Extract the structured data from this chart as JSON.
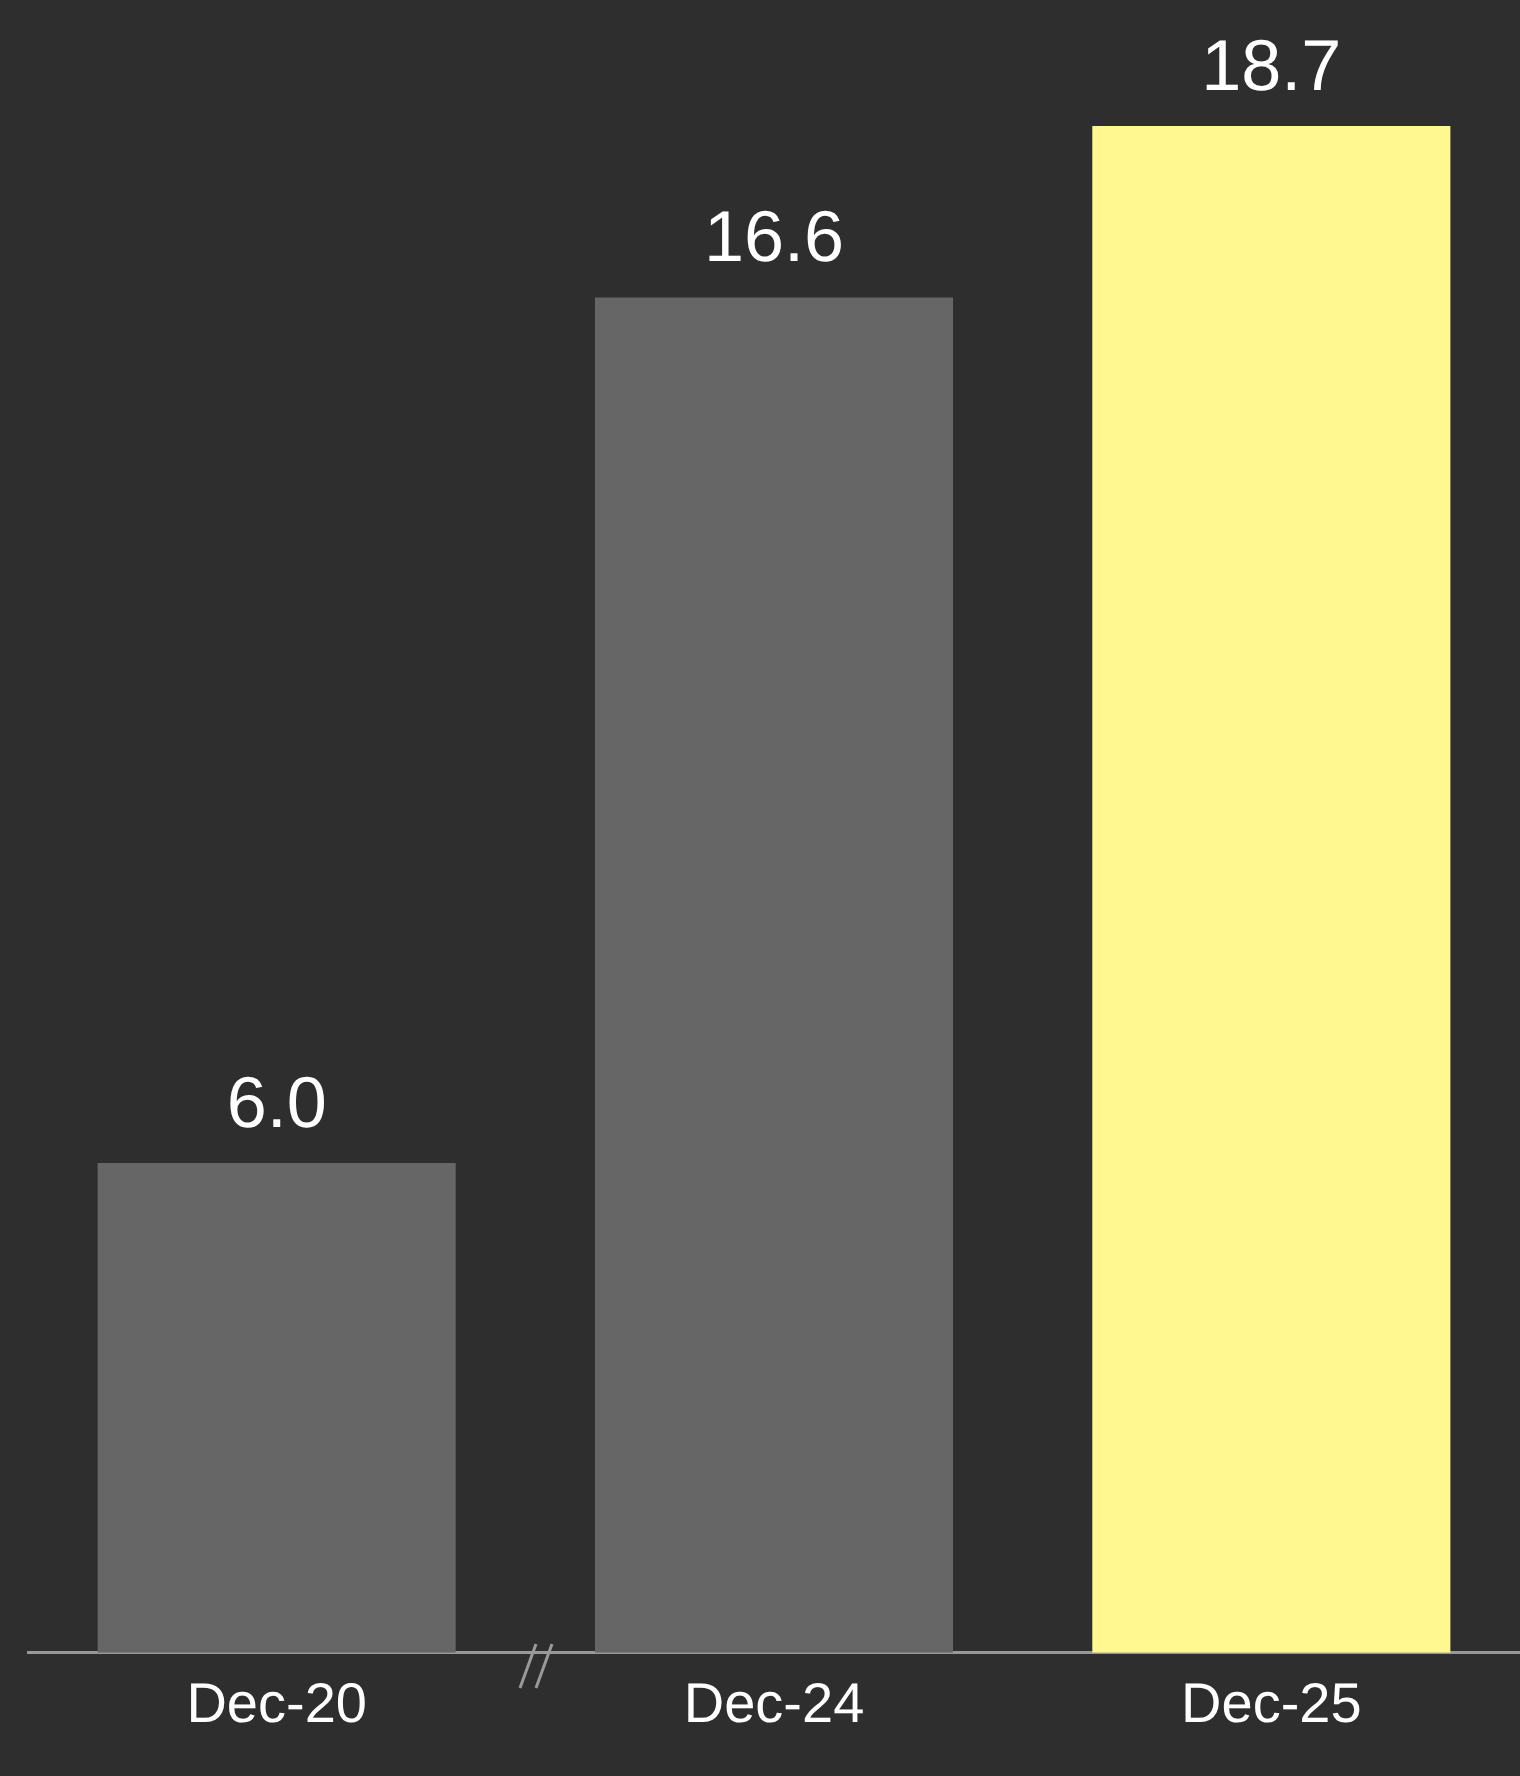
{
  "chart_data": {
    "type": "bar",
    "categories": [
      "Dec-20",
      "Dec-24",
      "Dec-25"
    ],
    "values": [
      6.0,
      16.6,
      18.7
    ],
    "colors": [
      "#666666",
      "#666666",
      "#fff891"
    ],
    "value_labels": [
      "6.0",
      "16.6",
      "18.7"
    ],
    "legend": false
  }
}
